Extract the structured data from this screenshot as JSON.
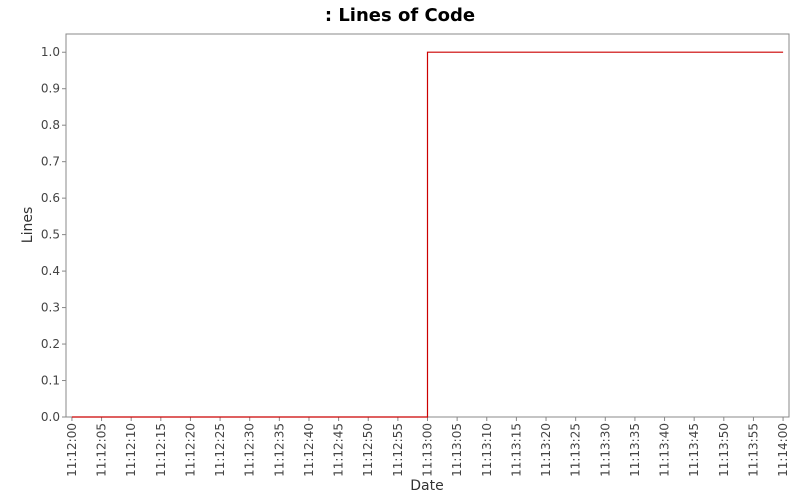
{
  "chart_data": {
    "type": "line",
    "title": ": Lines of Code",
    "xlabel": "Date",
    "ylabel": "Lines",
    "x_ticks": [
      "11:12:00",
      "11:12:05",
      "11:12:10",
      "11:12:15",
      "11:12:20",
      "11:12:25",
      "11:12:30",
      "11:12:35",
      "11:12:40",
      "11:12:45",
      "11:12:50",
      "11:12:55",
      "11:13:00",
      "11:13:05",
      "11:13:10",
      "11:13:15",
      "11:13:20",
      "11:13:25",
      "11:13:30",
      "11:13:35",
      "11:13:40",
      "11:13:45",
      "11:13:50",
      "11:13:55",
      "11:14:00"
    ],
    "y_ticks": [
      "0.0",
      "0.1",
      "0.2",
      "0.3",
      "0.4",
      "0.5",
      "0.6",
      "0.7",
      "0.8",
      "0.9",
      "1.0"
    ],
    "ylim": [
      0,
      1.05
    ],
    "xlim": [
      "11:11:59",
      "11:14:01"
    ],
    "grid": false,
    "line_style": "step",
    "series": [
      {
        "color": "#cc0000",
        "points": [
          {
            "x": "11:12:00",
            "y": 0.0
          },
          {
            "x": "11:13:00",
            "y": 0.0
          },
          {
            "x": "11:13:00",
            "y": 1.0
          },
          {
            "x": "11:14:00",
            "y": 1.0
          }
        ]
      }
    ]
  }
}
